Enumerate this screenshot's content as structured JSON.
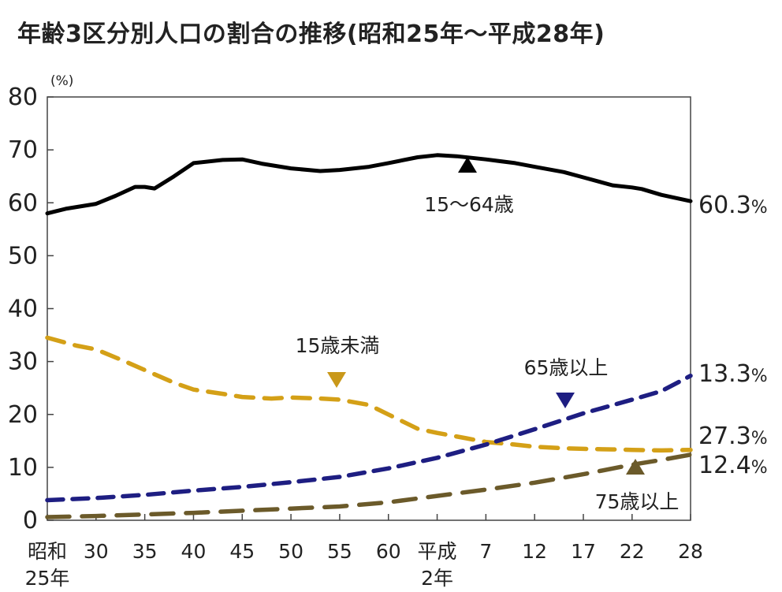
{
  "chart_data": {
    "type": "line",
    "title": "年齢3区分別人口の割合の推移(昭和25年～平成28年)",
    "y_unit": "(%)",
    "ylim": [
      0,
      80
    ],
    "y_ticks": [
      "0",
      "10",
      "20",
      "30",
      "40",
      "50",
      "60",
      "70",
      "80"
    ],
    "x_range": [
      1950,
      2016
    ],
    "x_ticks": [
      {
        "year": 1950,
        "label": "昭和",
        "label2": "25年"
      },
      {
        "year": 1955,
        "label": "30"
      },
      {
        "year": 1960,
        "label": "35"
      },
      {
        "year": 1965,
        "label": "40"
      },
      {
        "year": 1970,
        "label": "45"
      },
      {
        "year": 1975,
        "label": "50"
      },
      {
        "year": 1980,
        "label": "55"
      },
      {
        "year": 1985,
        "label": "60"
      },
      {
        "year": 1990,
        "label": "平成",
        "label2": "2年"
      },
      {
        "year": 1995,
        "label": "7"
      },
      {
        "year": 2000,
        "label": "12"
      },
      {
        "year": 2005,
        "label": "17"
      },
      {
        "year": 2010,
        "label": "22"
      },
      {
        "year": 2016,
        "label": "28"
      }
    ],
    "series": [
      {
        "name": "15～64歳",
        "color": "#000000",
        "x": [
          1950,
          1952,
          1955,
          1957,
          1959,
          1960,
          1961,
          1963,
          1965,
          1968,
          1970,
          1972,
          1975,
          1978,
          1980,
          1983,
          1985,
          1988,
          1990,
          1992,
          1995,
          1998,
          2000,
          2003,
          2005,
          2008,
          2010,
          2011,
          2013,
          2016
        ],
        "values": [
          58.0,
          58.9,
          59.8,
          61.3,
          63.0,
          63.0,
          62.7,
          65.0,
          67.5,
          68.1,
          68.2,
          67.4,
          66.5,
          66.0,
          66.2,
          66.8,
          67.5,
          68.6,
          69.0,
          68.8,
          68.2,
          67.5,
          66.8,
          65.8,
          64.8,
          63.3,
          62.9,
          62.6,
          61.5,
          60.3
        ],
        "end_label": "60.3%",
        "dash": "solid"
      },
      {
        "name": "15歳未満",
        "color": "#d4a017",
        "x": [
          1950,
          1953,
          1955,
          1958,
          1960,
          1963,
          1965,
          1968,
          1970,
          1973,
          1975,
          1978,
          1980,
          1983,
          1985,
          1988,
          1990,
          1993,
          1995,
          1998,
          2000,
          2003,
          2005,
          2008,
          2010,
          2013,
          2016
        ],
        "values": [
          34.5,
          33.0,
          32.3,
          30.0,
          28.4,
          26.0,
          24.7,
          23.9,
          23.3,
          23.0,
          23.2,
          23.0,
          22.8,
          21.8,
          20.0,
          17.3,
          16.5,
          15.5,
          14.8,
          14.3,
          13.9,
          13.6,
          13.5,
          13.4,
          13.3,
          13.2,
          13.3
        ],
        "end_label": "13.3%",
        "label_text": "15歳未満",
        "dash": "dashed"
      },
      {
        "name": "65歳以上",
        "color": "#1e1e82",
        "x": [
          1950,
          1955,
          1960,
          1965,
          1970,
          1975,
          1980,
          1985,
          1990,
          1995,
          2000,
          2005,
          2010,
          2013,
          2016
        ],
        "values": [
          3.8,
          4.2,
          4.8,
          5.6,
          6.3,
          7.2,
          8.2,
          9.8,
          11.8,
          14.3,
          17.2,
          20.2,
          22.8,
          24.4,
          27.3
        ],
        "end_label": "27.3%",
        "label_text": "65歳以上",
        "dash": "dashed"
      },
      {
        "name": "75歳以上",
        "color": "#6b5a2a",
        "x": [
          1950,
          1955,
          1960,
          1965,
          1970,
          1975,
          1980,
          1985,
          1990,
          1995,
          2000,
          2005,
          2010,
          2013,
          2016
        ],
        "values": [
          0.6,
          0.8,
          1.1,
          1.4,
          1.8,
          2.2,
          2.6,
          3.4,
          4.6,
          5.8,
          7.1,
          8.7,
          10.5,
          11.4,
          12.4
        ],
        "end_label": "12.4%",
        "label_text": "75歳以上",
        "dash": "dashed"
      }
    ]
  }
}
